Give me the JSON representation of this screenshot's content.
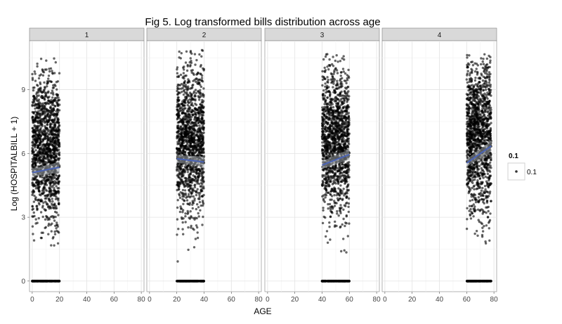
{
  "chart_data": {
    "type": "scatter",
    "title": "Fig 5. Log transformed bills distribution across age",
    "xlabel": "AGE",
    "ylabel": "Log (HOSPITALBILL + 1)",
    "xlim": [
      -2,
      82
    ],
    "ylim": [
      -0.5,
      11.3
    ],
    "x_ticks": [
      0,
      20,
      40,
      60,
      80
    ],
    "y_ticks": [
      0,
      3,
      6,
      9
    ],
    "facet_variable_values": [
      "1",
      "2",
      "3",
      "4"
    ],
    "legend": {
      "title": "0.1",
      "entries": [
        "0.1"
      ],
      "position": "right"
    },
    "grid": true,
    "point_color": "#000000",
    "point_alpha": 0.6,
    "trend_color": "#4a63b5",
    "panels": [
      {
        "facet": "1",
        "age_range": [
          0,
          20
        ],
        "cloud_y_range": [
          1.5,
          10.7
        ],
        "zero_points": true,
        "trend": {
          "x": [
            0,
            20
          ],
          "y": [
            5.1,
            5.35
          ]
        }
      },
      {
        "facet": "2",
        "age_range": [
          20,
          40
        ],
        "cloud_y_range": [
          0.9,
          10.9
        ],
        "zero_points": true,
        "trend": {
          "x": [
            20,
            40
          ],
          "y": [
            5.75,
            5.6
          ]
        }
      },
      {
        "facet": "3",
        "age_range": [
          40,
          60
        ],
        "cloud_y_range": [
          1.0,
          10.8
        ],
        "zero_points": true,
        "trend": {
          "x": [
            40,
            60
          ],
          "y": [
            5.45,
            5.95
          ]
        }
      },
      {
        "facet": "4",
        "age_range": [
          60,
          78
        ],
        "cloud_y_range": [
          1.5,
          10.7
        ],
        "zero_points": true,
        "trend": {
          "x": [
            60,
            78
          ],
          "y": [
            5.55,
            6.35
          ]
        }
      }
    ]
  }
}
